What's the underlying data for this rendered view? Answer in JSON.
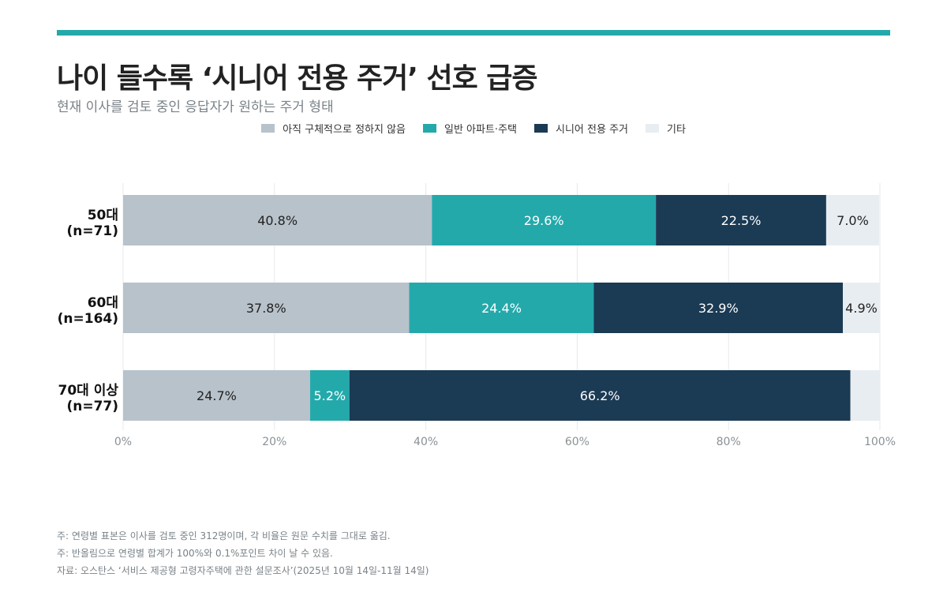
{
  "title": "나이 들수록 ‘시니어 전용 주거’ 선호 급증",
  "subtitle": "현재 이사를 검토 중인 응답자가 원하는 주거 형태",
  "colors": {
    "accent": "#24a9ab",
    "undecided": "#b8c2ca",
    "apartment": "#24a9ab",
    "senior": "#1b3a54",
    "other": "#e8edf1",
    "grid": "#e6e9ec"
  },
  "notes": [
    "주: 연령별 표본은 이사를 검토 중인 312명이며, 각 비율은 원문 수치를 그대로 옮김.",
    "주: 반올림으로 연령별 합계가 100%와 0.1%포인트 차이 날 수 있음.",
    "자료: 오스탄스 ‘서비스 제공형 고령자주택에 관한 설문조사’(2025년 10월 14일-11월 14일)"
  ],
  "chart_data": {
    "type": "bar",
    "orientation": "horizontal",
    "stacked": true,
    "categories": [
      [
        "50대",
        "(n=71)"
      ],
      [
        "60대",
        "(n=164)"
      ],
      [
        "70대 이상",
        "(n=77)"
      ]
    ],
    "series": [
      {
        "name": "아직 구체적으로 정하지 않음",
        "values": [
          40.8,
          37.8,
          24.7
        ],
        "color": "#b8c2ca",
        "label_color": "#222222"
      },
      {
        "name": "일반 아파트·주택",
        "values": [
          29.6,
          24.4,
          5.2
        ],
        "color": "#24a9ab",
        "label_color": "#ffffff"
      },
      {
        "name": "시니어 전용 주거",
        "values": [
          22.5,
          32.9,
          66.2
        ],
        "color": "#1b3a54",
        "label_color": "#ffffff"
      },
      {
        "name": "기타",
        "values": [
          7.0,
          4.9,
          3.9
        ],
        "color": "#e8edf1",
        "label_color": "#222222"
      }
    ],
    "value_labels": [
      [
        "40.8%",
        "37.8%",
        "24.7%"
      ],
      [
        "29.6%",
        "24.4%",
        "5.2%"
      ],
      [
        "22.5%",
        "32.9%",
        "66.2%"
      ],
      [
        "7.0%",
        "4.9%",
        ""
      ]
    ],
    "xlim": [
      0,
      100
    ],
    "xticks": [
      0,
      20,
      40,
      60,
      80,
      100
    ],
    "xtick_labels": [
      "0%",
      "20%",
      "40%",
      "60%",
      "80%",
      "100%"
    ],
    "grid": true,
    "legend_position": "top-center"
  }
}
